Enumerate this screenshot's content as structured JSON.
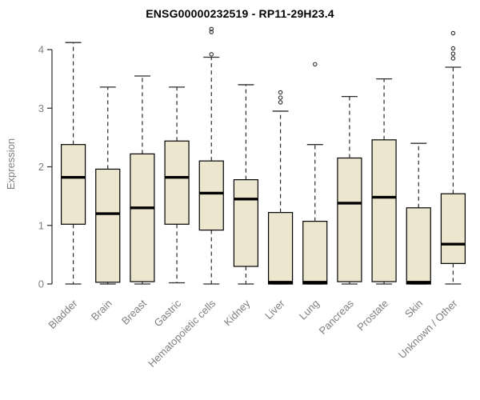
{
  "chart_data": {
    "type": "boxplot",
    "title": "ENSG00000232519 - RP11-29H23.4",
    "ylabel": "Expression",
    "ylim": [
      0,
      4.45
    ],
    "yticks": [
      0,
      1,
      2,
      3,
      4
    ],
    "categories": [
      "Bladder",
      "Brain",
      "Breast",
      "Gastric",
      "Hematopoietic cells",
      "Kidney",
      "Liver",
      "Lung",
      "Pancreas",
      "Prostate",
      "Skin",
      "Unknown / Other"
    ],
    "series": [
      {
        "name": "Bladder",
        "low": 0,
        "q1": 1.02,
        "median": 1.82,
        "q3": 2.38,
        "high": 4.12,
        "outliers": []
      },
      {
        "name": "Brain",
        "low": 0,
        "q1": 0.03,
        "median": 1.2,
        "q3": 1.96,
        "high": 3.36,
        "outliers": []
      },
      {
        "name": "Breast",
        "low": 0,
        "q1": 0.04,
        "median": 1.3,
        "q3": 2.22,
        "high": 3.55,
        "outliers": []
      },
      {
        "name": "Gastric",
        "low": 0.02,
        "q1": 1.02,
        "median": 1.82,
        "q3": 2.44,
        "high": 3.36,
        "outliers": []
      },
      {
        "name": "Hematopoietic cells",
        "low": 0,
        "q1": 0.92,
        "median": 1.55,
        "q3": 2.1,
        "high": 3.87,
        "outliers": [
          3.92,
          4.3,
          4.35
        ]
      },
      {
        "name": "Kidney",
        "low": 0,
        "q1": 0.3,
        "median": 1.45,
        "q3": 1.78,
        "high": 3.4,
        "outliers": []
      },
      {
        "name": "Liver",
        "low": 0,
        "q1": 0.0,
        "median": 0.03,
        "q3": 1.22,
        "high": 2.95,
        "outliers": [
          3.1,
          3.18,
          3.27
        ]
      },
      {
        "name": "Lung",
        "low": 0,
        "q1": 0.0,
        "median": 0.03,
        "q3": 1.07,
        "high": 2.38,
        "outliers": [
          3.75
        ]
      },
      {
        "name": "Pancreas",
        "low": 0,
        "q1": 0.04,
        "median": 1.38,
        "q3": 2.15,
        "high": 3.2,
        "outliers": []
      },
      {
        "name": "Prostate",
        "low": 0,
        "q1": 0.04,
        "median": 1.48,
        "q3": 2.46,
        "high": 3.5,
        "outliers": []
      },
      {
        "name": "Skin",
        "low": 0,
        "q1": 0.0,
        "median": 0.03,
        "q3": 1.3,
        "high": 2.4,
        "outliers": []
      },
      {
        "name": "Unknown / Other",
        "low": 0,
        "q1": 0.35,
        "median": 0.68,
        "q3": 1.54,
        "high": 3.7,
        "outliers": [
          3.85,
          3.93,
          4.02,
          4.28
        ]
      }
    ],
    "layout_hints": {
      "grid": "off",
      "legend": "none",
      "x_label_rotation": 45
    },
    "colors": {
      "box_fill": "#ebe6cd",
      "box_stroke": "#000000",
      "axis_color": "#2b2b2b",
      "label_color": "#7f7f7f",
      "outlier_color": "#2b2b2b"
    }
  }
}
